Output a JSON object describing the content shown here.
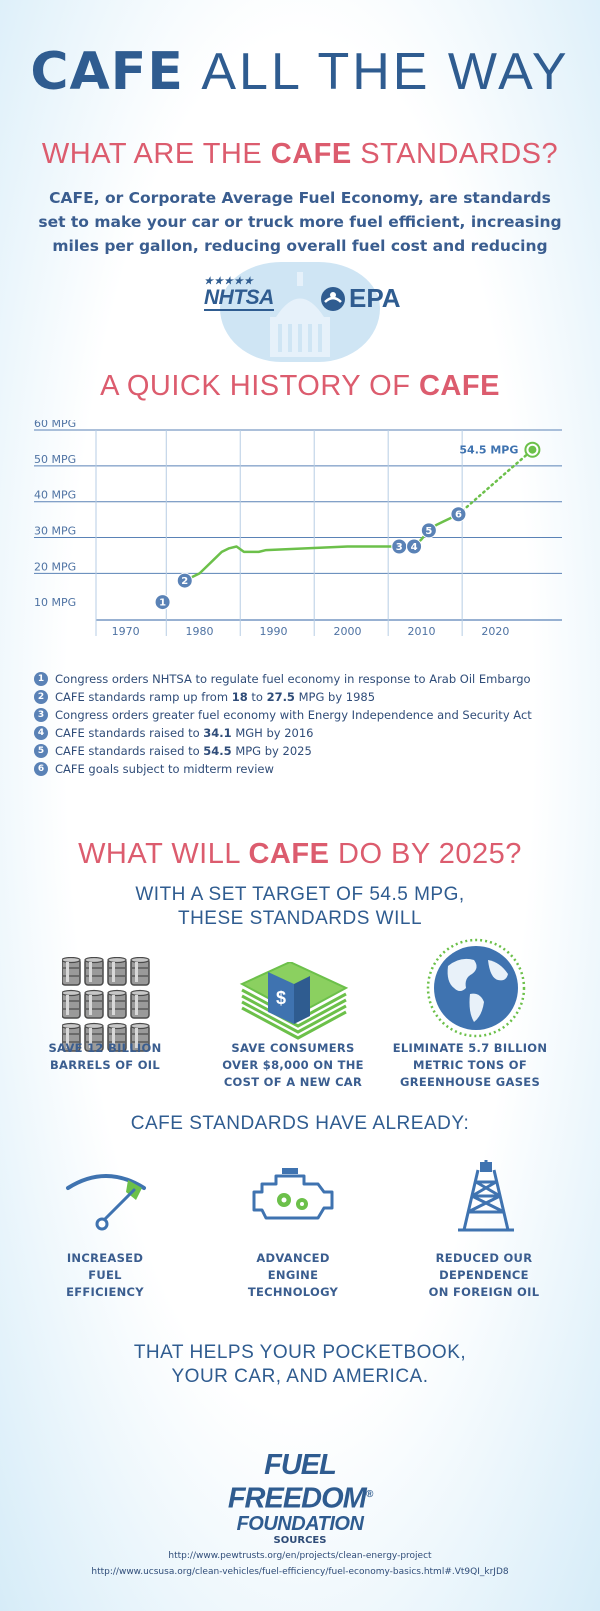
{
  "title": {
    "bold": "CAFE",
    "rest": "ALL THE WAY"
  },
  "section1": {
    "heading_pre": "WHAT ARE THE ",
    "heading_bold": "CAFE",
    "heading_post": " STANDARDS?",
    "body": "CAFE, or Corporate Average Fuel Economy, are standards set to make your car or truck more fuel efficient, increasing miles per gallon, reducing overall fuel cost and reducing emissions.",
    "logo_nhtsa": "NHTSA",
    "logo_epa": "EPA"
  },
  "section2": {
    "heading_pre": "A QUICK HISTORY OF ",
    "heading_bold": "CAFE"
  },
  "chart_data": {
    "type": "line",
    "title": "",
    "xlabel": "",
    "ylabel": "",
    "xlim": [
      1966,
      2029
    ],
    "ylim": [
      7,
      60
    ],
    "x_ticks": [
      1970,
      1980,
      1990,
      2000,
      2010,
      2020
    ],
    "x_tick_labels": [
      "1970",
      "1980",
      "1990",
      "2000",
      "2010",
      "2020"
    ],
    "y_ticks": [
      10,
      20,
      30,
      40,
      50,
      60
    ],
    "y_tick_labels": [
      "10 MPG",
      "20 MPG",
      "30 MPG",
      "40 MPG",
      "50 MPG",
      "60 MPG"
    ],
    "grid": true,
    "series": [
      {
        "style": "solid",
        "color": "#6cc04a",
        "x": [
          1978,
          1979,
          1980,
          1981,
          1982,
          1983,
          1984,
          1985,
          1986,
          1987,
          1988,
          1989,
          2000,
          2005,
          2007,
          2008,
          2009,
          2010,
          2011,
          2012,
          2013,
          2014,
          2015
        ],
        "y": [
          18,
          19,
          20,
          22,
          24,
          26,
          27,
          27.5,
          26,
          26,
          26,
          26.5,
          27.5,
          27.5,
          27.5,
          27.5,
          27.5,
          29.5,
          32,
          33.5,
          34.5,
          35.5,
          36.5
        ]
      },
      {
        "style": "dotted",
        "color": "#6cc04a",
        "x": [
          2015,
          2025
        ],
        "y": [
          36.5,
          54.5
        ]
      }
    ],
    "markers": [
      {
        "label": "1",
        "x": 1975,
        "y": 12
      },
      {
        "label": "2",
        "x": 1978,
        "y": 18
      },
      {
        "label": "3",
        "x": 2007,
        "y": 27.5
      },
      {
        "label": "4",
        "x": 2009,
        "y": 27.5
      },
      {
        "label": "5",
        "x": 2011,
        "y": 32
      },
      {
        "label": "6",
        "x": 2015,
        "y": 36.5
      }
    ],
    "endpoint": {
      "x": 2025,
      "y": 54.5,
      "label": "54.5 MPG"
    },
    "annotations": [
      {
        "num": "1",
        "text": "Congress orders NHTSA to regulate fuel economy in response to Arab Oil Embargo"
      },
      {
        "num": "2",
        "pre": "CAFE standards ramp up from ",
        "b1": "18",
        "mid": " to ",
        "b2": "27.5",
        "post": " MPG by 1985"
      },
      {
        "num": "3",
        "text": "Congress orders greater fuel economy with Energy Independence and Security Act"
      },
      {
        "num": "4",
        "pre": "CAFE standards raised to ",
        "b1": "34.1",
        "post": " MGH by 2016"
      },
      {
        "num": "5",
        "pre": "CAFE standards raised to ",
        "b1": "54.5",
        "post": " MPG by 2025"
      },
      {
        "num": "6",
        "text": "CAFE goals subject to midterm review"
      }
    ]
  },
  "section3": {
    "heading_pre": "WHAT WILL ",
    "heading_bold": "CAFE",
    "heading_post": " DO BY 2025?",
    "sub_line1": "WITH A SET TARGET OF 54.5 MPG,",
    "sub_line2": "THESE STANDARDS WILL",
    "items": [
      {
        "icon": "oil-barrels-icon",
        "line1": "SAVE 12 BILLION",
        "line2": "BARRELS OF OIL",
        "line3": ""
      },
      {
        "icon": "money-stack-icon",
        "line1": "SAVE CONSUMERS",
        "line2": "OVER $8,000 ON THE",
        "line3": "COST OF A NEW CAR"
      },
      {
        "icon": "globe-icon",
        "line1": "ELIMINATE 5.7 BILLION",
        "line2": "METRIC TONS OF",
        "line3": "GREENHOUSE GASES"
      }
    ]
  },
  "section4": {
    "heading": "CAFE STANDARDS HAVE ALREADY:",
    "items": [
      {
        "icon": "fuel-gauge-icon",
        "line1": "INCREASED",
        "line2": "FUEL",
        "line3": "EFFICIENCY"
      },
      {
        "icon": "engine-icon",
        "line1": "ADVANCED",
        "line2": "ENGINE",
        "line3": "TECHNOLOGY"
      },
      {
        "icon": "oil-derrick-icon",
        "line1": "REDUCED OUR",
        "line2": "DEPENDENCE",
        "line3": "ON FOREIGN OIL"
      }
    ]
  },
  "closing": {
    "line1": "THAT HELPS YOUR POCKETBOOK,",
    "line2": "YOUR CAR, AND AMERICA."
  },
  "logo": {
    "line1": "FUEL FREEDOM",
    "line2": "FOUNDATION",
    "mark": "®"
  },
  "sources": {
    "title": "SOURCES",
    "urls": [
      "http://www.pewtrusts.org/en/projects/clean-energy-project",
      "http://www.ucsusa.org/clean-vehicles/fuel-efficiency/fuel-economy-basics.html#.Vt9QI_krJD8"
    ]
  },
  "colors": {
    "navy": "#2f5c90",
    "pink": "#dc5c6e",
    "green": "#6cc04a",
    "marker": "#5a82b6"
  }
}
